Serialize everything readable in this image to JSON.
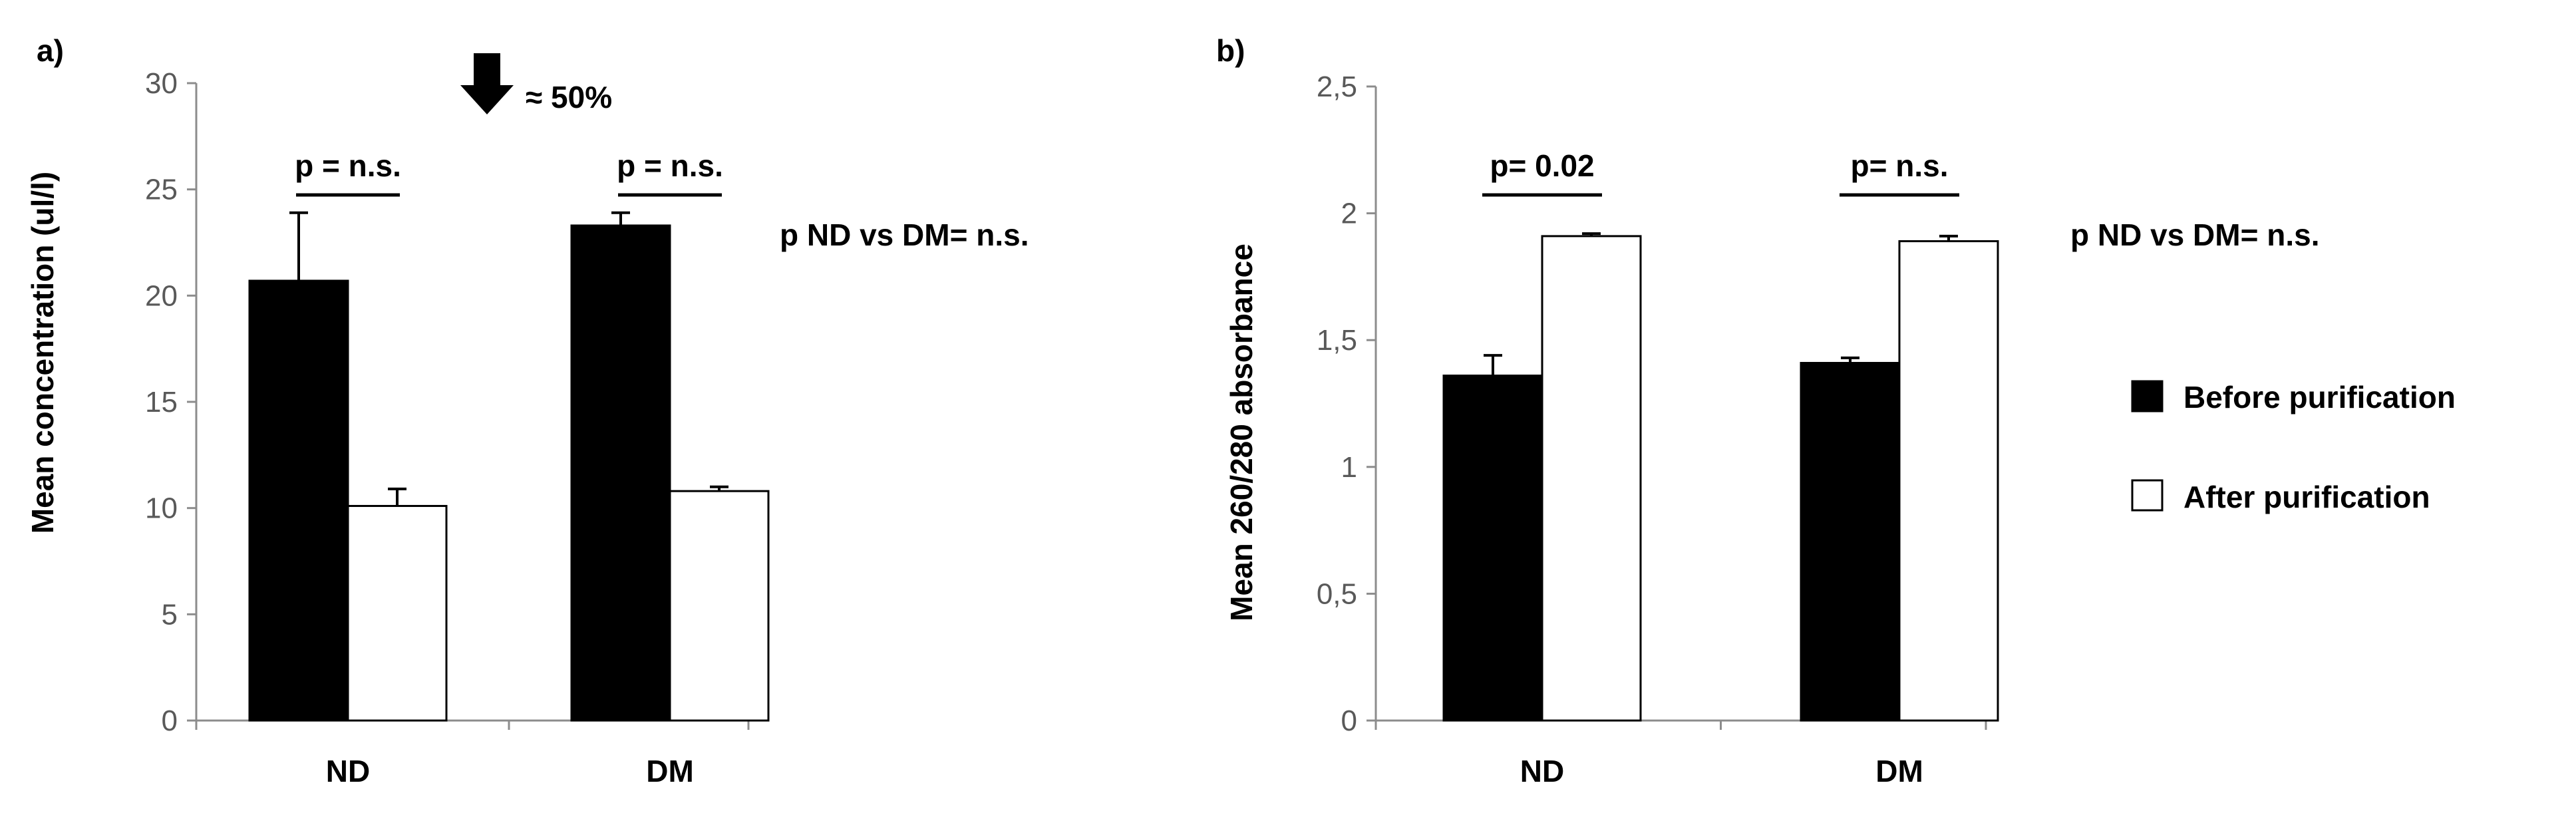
{
  "chart_data": [
    {
      "panel": "a)",
      "type": "bar",
      "categories": [
        "ND",
        "DM"
      ],
      "series": [
        {
          "name": "Before purification",
          "values": [
            20.7,
            23.3
          ],
          "errors": [
            3.2,
            0.6
          ]
        },
        {
          "name": "After purification",
          "values": [
            10.1,
            10.8
          ],
          "errors": [
            0.8,
            0.2
          ]
        }
      ],
      "ylabel": "Mean  concentration (ul/l)",
      "ylim": [
        0,
        30
      ],
      "yticks": [
        0,
        5,
        10,
        15,
        20,
        25,
        30
      ],
      "ytick_labels": [
        "0",
        "5",
        "10",
        "15",
        "20",
        "25",
        "30"
      ],
      "comparisons": [
        "p = n.s.",
        "p = n.s."
      ],
      "group_comparison": "p ND vs DM= n.s.",
      "arrow_label": "≈ 50%",
      "arrow_direction": "down"
    },
    {
      "panel": "b)",
      "type": "bar",
      "categories": [
        "ND",
        "DM"
      ],
      "series": [
        {
          "name": "Before purification",
          "values": [
            1.36,
            1.41
          ],
          "errors": [
            0.08,
            0.02
          ]
        },
        {
          "name": "After purification",
          "values": [
            1.91,
            1.89
          ],
          "errors": [
            0.01,
            0.02
          ]
        }
      ],
      "ylabel": "Mean 260/280 absorbance",
      "ylim": [
        0,
        2.5
      ],
      "yticks": [
        0,
        0.5,
        1,
        1.5,
        2,
        2.5
      ],
      "ytick_labels": [
        "0",
        "0,5",
        "1",
        "1,5",
        "2",
        "2,5"
      ],
      "comparisons": [
        "p= 0.02",
        "p= n.s."
      ],
      "group_comparison": "p ND vs DM= n.s."
    }
  ],
  "legend": {
    "position": "right",
    "items": [
      {
        "label": "Before purification",
        "color": "#000000"
      },
      {
        "label": "After purification",
        "color": "#ffffff"
      }
    ]
  },
  "colors": {
    "axis": "#8c8c8c",
    "bar_before": "#000000",
    "bar_after": "#ffffff",
    "tick_text": "#595959"
  }
}
